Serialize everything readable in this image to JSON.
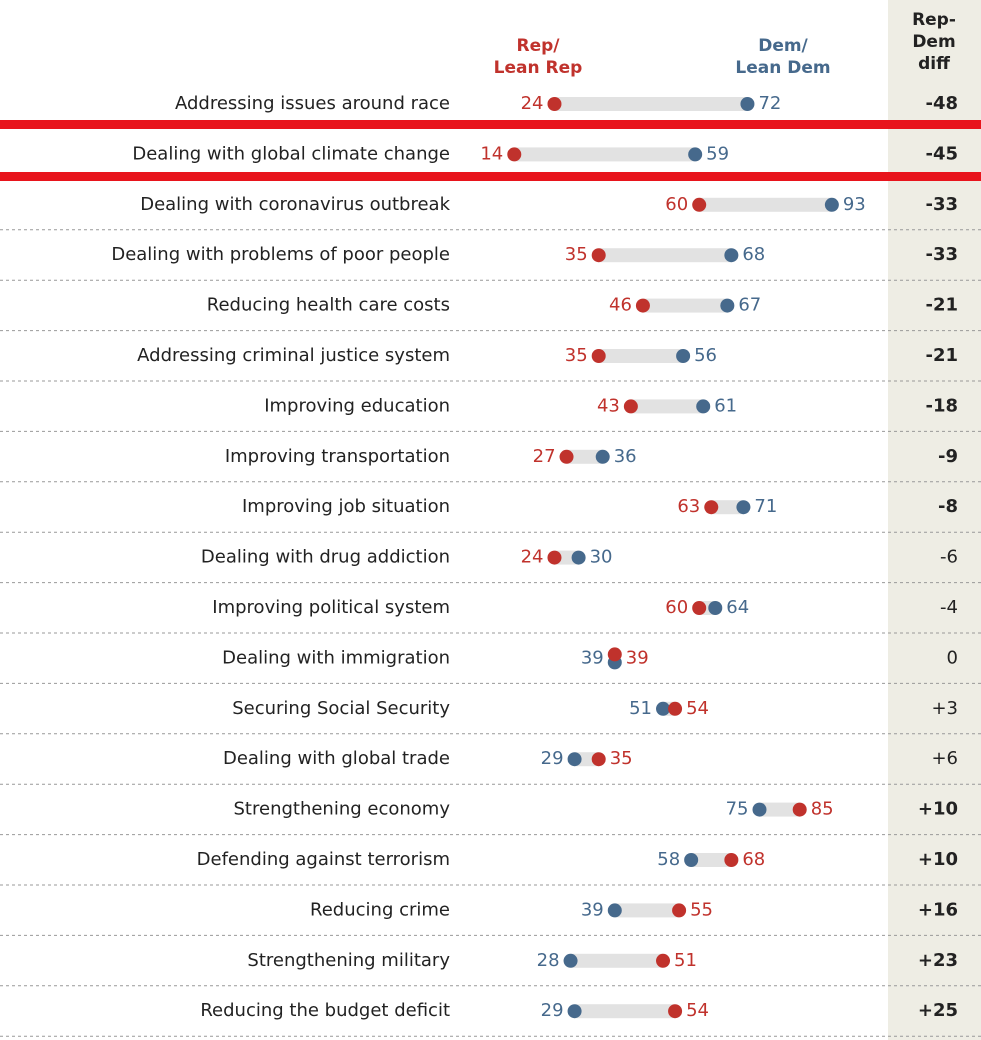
{
  "chart_data": {
    "type": "dot",
    "rep_header": [
      "Rep/",
      "Lean Rep"
    ],
    "dem_header": [
      "Dem/",
      "Lean Dem"
    ],
    "diff_header": [
      "Rep-",
      "Dem",
      "diff"
    ],
    "categories": [
      "Addressing issues around race",
      "Dealing with global climate change",
      "Dealing with coronavirus outbreak",
      "Dealing with problems of poor people",
      "Reducing health care costs",
      "Addressing criminal justice system",
      "Improving education",
      "Improving transportation",
      "Improving job situation",
      "Dealing with drug addiction",
      "Improving political system",
      "Dealing with immigration",
      "Securing Social Security",
      "Dealing with global trade",
      "Strengthening economy",
      "Defending against terrorism",
      "Reducing crime",
      "Strengthening military",
      "Reducing the budget deficit"
    ],
    "series": [
      {
        "name": "Rep/Lean Rep",
        "color": "#c0322c",
        "values": [
          24,
          14,
          60,
          35,
          46,
          35,
          43,
          27,
          63,
          24,
          60,
          39,
          54,
          35,
          85,
          68,
          55,
          51,
          54
        ]
      },
      {
        "name": "Dem/Lean Dem",
        "color": "#46698c",
        "values": [
          72,
          59,
          93,
          68,
          67,
          56,
          61,
          36,
          71,
          30,
          64,
          39,
          51,
          29,
          75,
          58,
          39,
          28,
          29
        ]
      }
    ],
    "diff": {
      "values": [
        -48,
        -45,
        -33,
        -33,
        -21,
        -21,
        -18,
        -9,
        -8,
        -6,
        -4,
        0,
        3,
        6,
        10,
        10,
        16,
        23,
        25
      ],
      "value_labels": [
        "-48",
        "-45",
        "-33",
        "-33",
        "-21",
        "-21",
        "-18",
        "-9",
        "-8",
        "-6",
        "-4",
        "0",
        "+3",
        "+6",
        "+10",
        "+10",
        "+16",
        "+23",
        "+25"
      ],
      "significant": [
        true,
        true,
        true,
        true,
        true,
        true,
        true,
        true,
        true,
        false,
        false,
        false,
        false,
        false,
        true,
        true,
        true,
        true,
        true
      ]
    }
  }
}
